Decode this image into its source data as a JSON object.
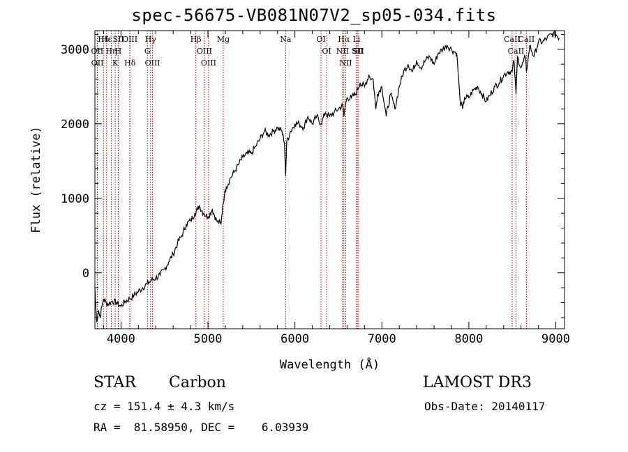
{
  "chart_data": {
    "type": "line",
    "title": "spec-56675-VB081N07V2_sp05-034.fits",
    "xlabel": "Wavelength (Å)",
    "ylabel": "Flux (relative)",
    "xlim": [
      3700,
      9100
    ],
    "ylim": [
      -750,
      3250
    ],
    "x_ticks": [
      4000,
      5000,
      6000,
      7000,
      8000,
      9000
    ],
    "x_tick_labels": [
      "4000",
      "5000",
      "6000",
      "7000",
      "8000",
      "9000"
    ],
    "y_ticks": [
      0,
      1000,
      2000,
      3000
    ],
    "y_tick_labels": [
      "0",
      "1000",
      "2000",
      "3000"
    ],
    "series": [
      {
        "name": "spectrum",
        "x": [
          3700,
          3710,
          3720,
          3740,
          3760,
          3780,
          3800,
          3830,
          3860,
          3900,
          3950,
          4000,
          4050,
          4100,
          4150,
          4200,
          4250,
          4300,
          4350,
          4400,
          4450,
          4500,
          4550,
          4600,
          4650,
          4700,
          4750,
          4800,
          4850,
          4880,
          4900,
          4950,
          5000,
          5050,
          5100,
          5150,
          5170,
          5190,
          5210,
          5250,
          5300,
          5350,
          5400,
          5450,
          5500,
          5550,
          5600,
          5650,
          5700,
          5750,
          5800,
          5850,
          5880,
          5893,
          5905,
          5950,
          6000,
          6050,
          6100,
          6150,
          6200,
          6250,
          6300,
          6350,
          6400,
          6450,
          6500,
          6550,
          6563,
          6580,
          6600,
          6650,
          6700,
          6750,
          6800,
          6850,
          6880,
          6900,
          6930,
          6950,
          7000,
          7050,
          7100,
          7150,
          7200,
          7250,
          7300,
          7350,
          7400,
          7450,
          7500,
          7550,
          7600,
          7650,
          7700,
          7750,
          7800,
          7850,
          7860,
          7900,
          7930,
          7950,
          8000,
          8050,
          8100,
          8150,
          8200,
          8250,
          8300,
          8350,
          8400,
          8450,
          8498,
          8520,
          8542,
          8560,
          8600,
          8650,
          8662,
          8700,
          8750,
          8800,
          8850,
          8900,
          8950,
          9000,
          9040
        ],
        "y": [
          -200,
          -450,
          -650,
          -500,
          -600,
          -450,
          -350,
          -400,
          -420,
          -380,
          -400,
          -450,
          -380,
          -350,
          -300,
          -250,
          -200,
          -150,
          -100,
          -70,
          -30,
          50,
          150,
          250,
          400,
          500,
          650,
          700,
          800,
          850,
          900,
          800,
          750,
          850,
          700,
          650,
          900,
          1050,
          1150,
          1250,
          1350,
          1450,
          1550,
          1600,
          1600,
          1700,
          1800,
          1900,
          1850,
          1900,
          1950,
          1900,
          1750,
          1300,
          1750,
          1900,
          2000,
          2000,
          1950,
          2100,
          2000,
          2100,
          2000,
          2150,
          2100,
          2150,
          2200,
          2250,
          2100,
          2250,
          2350,
          2350,
          2400,
          2550,
          2500,
          2650,
          2600,
          2600,
          2200,
          2400,
          2500,
          2100,
          2400,
          2200,
          2500,
          2700,
          2800,
          2700,
          2850,
          2750,
          2850,
          2900,
          2800,
          2950,
          3000,
          3050,
          3000,
          2950,
          2950,
          2300,
          2200,
          2350,
          2350,
          2450,
          2500,
          2400,
          2300,
          2400,
          2500,
          2550,
          2650,
          2700,
          2700,
          2850,
          2400,
          2900,
          2750,
          2900,
          2700,
          3050,
          2900,
          3100,
          3100,
          3150,
          3200,
          3200,
          3150
        ]
      }
    ],
    "spectral_lines": [
      {
        "label": "Hδ",
        "x": 3798
      },
      {
        "label": "OII",
        "x": 3727
      },
      {
        "label": "OII",
        "x": 3729
      },
      {
        "label": "Hε",
        "x": 3835
      },
      {
        "label": "Hη",
        "x": 3889
      },
      {
        "label": "K",
        "x": 3934
      },
      {
        "label": "SII",
        "x": 3970
      },
      {
        "label": "H",
        "x": 3968
      },
      {
        "label": "Hδ",
        "x": 4102
      },
      {
        "label": "OIII",
        "x": 4102
      },
      {
        "label": "Hγ",
        "x": 4340
      },
      {
        "label": "G",
        "x": 4304
      },
      {
        "label": "OIII",
        "x": 4363
      },
      {
        "label": "Hβ",
        "x": 4861
      },
      {
        "label": "OIII",
        "x": 4959
      },
      {
        "label": "OIII",
        "x": 5007
      },
      {
        "label": "Mg",
        "x": 5176
      },
      {
        "label": "Na",
        "x": 5893
      },
      {
        "label": "OI",
        "x": 6300
      },
      {
        "label": "OI",
        "x": 6364
      },
      {
        "label": "Hα",
        "x": 6563
      },
      {
        "label": "NII",
        "x": 6548
      },
      {
        "label": "NII",
        "x": 6584
      },
      {
        "label": "SII",
        "x": 6717
      },
      {
        "label": "Li",
        "x": 6708
      },
      {
        "label": "SII",
        "x": 6731
      },
      {
        "label": "CaII",
        "x": 8498
      },
      {
        "label": "CaII",
        "x": 8542
      },
      {
        "label": "CaII",
        "x": 8662
      }
    ]
  },
  "info": {
    "object_type": "STAR",
    "subclass": "Carbon",
    "survey": "LAMOST DR3",
    "redshift_text": "cz = 151.4 ± 4.3 km/s",
    "obs_date": "Obs-Date: 20140117",
    "coords_text": "RA =  81.58950, DEC =    6.03939"
  },
  "colors": {
    "spectrum": "#000000",
    "line_marker": "#c00000",
    "axes": "#000000"
  }
}
